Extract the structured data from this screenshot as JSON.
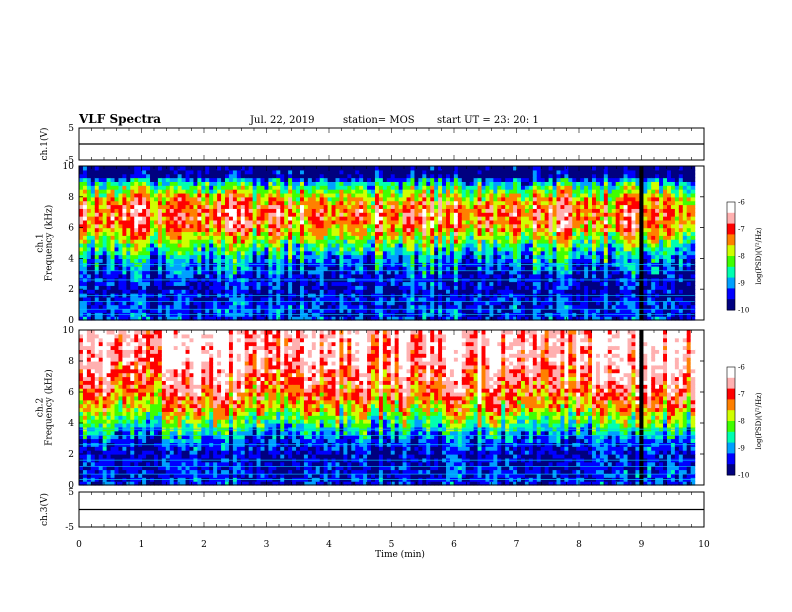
{
  "header": {
    "title": "VLF Spectra",
    "date": "Jul. 22, 2019",
    "station": "station= MOS",
    "start": "start UT = 23: 20: 1"
  },
  "colors": {
    "spectrum": [
      "#000080",
      "#0000ff",
      "#00a0ff",
      "#00ffb0",
      "#40ff00",
      "#d0ff00",
      "#ff8000",
      "#ff0000",
      "#ffb0b0",
      "#ffffff"
    ],
    "gap": "#000000",
    "axis": "#000000"
  },
  "chart_data": [
    {
      "type": "line",
      "name": "ch1-waveform",
      "ylabel": "ch.1(V)",
      "ylim": [
        -5,
        5
      ],
      "ytick_labels": [
        "5",
        "-5"
      ],
      "x": [
        0,
        10
      ],
      "y": [
        0,
        0
      ]
    },
    {
      "type": "heatmap",
      "name": "ch1-spectrogram",
      "ylabel": "ch.1\nFrequency (kHz)",
      "ylim": [
        0,
        10
      ],
      "ytick_labels": [
        "0",
        "2",
        "4",
        "6",
        "8",
        "10"
      ],
      "xlim": [
        0,
        10
      ],
      "data_end_min": 9.85,
      "gap_min": [
        8.97,
        9.03
      ],
      "profile": {
        "freq_khz": [
          0,
          1,
          2,
          3,
          4,
          5,
          6,
          7,
          8,
          9,
          9.4,
          10
        ],
        "log_psd": [
          -9.3,
          -9.4,
          -9.6,
          -9.4,
          -9.0,
          -8.2,
          -7.3,
          -7.0,
          -7.6,
          -8.8,
          -10,
          -10
        ]
      },
      "colorbar": {
        "label": "log(PSD)(V²/Hz)",
        "range": [
          -10,
          -6
        ],
        "tick_labels": [
          "-6",
          "-7",
          "-8",
          "-9",
          "-10"
        ]
      }
    },
    {
      "type": "heatmap",
      "name": "ch2-spectrogram",
      "ylabel": "ch.2\nFrequency (kHz)",
      "ylim": [
        0,
        10
      ],
      "ytick_labels": [
        "0",
        "2",
        "4",
        "6",
        "8",
        "10"
      ],
      "xlim": [
        0,
        10
      ],
      "data_end_min": 9.85,
      "gap_min": [
        8.97,
        9.03
      ],
      "profile": {
        "freq_khz": [
          0,
          1,
          2,
          3,
          4,
          5,
          6,
          7,
          8,
          9,
          10
        ],
        "log_psd": [
          -9.4,
          -9.5,
          -9.6,
          -9.2,
          -8.4,
          -7.6,
          -7.1,
          -6.8,
          -6.5,
          -6.4,
          -6.4
        ]
      },
      "colorbar": {
        "label": "log(PSD)(V²/Hz)",
        "range": [
          -10,
          -6
        ],
        "tick_labels": [
          "-6",
          "-7",
          "-8",
          "-9",
          "-10"
        ]
      }
    },
    {
      "type": "line",
      "name": "ch3-waveform",
      "ylabel": "ch.3(V)",
      "ylim": [
        -5,
        5
      ],
      "ytick_labels": [
        "5",
        "-5"
      ],
      "x": [
        0,
        10
      ],
      "y": [
        0,
        0
      ]
    }
  ],
  "xaxis": {
    "label": "Time (min)",
    "range": [
      0,
      10
    ],
    "tick_labels": [
      "0",
      "1",
      "2",
      "3",
      "4",
      "5",
      "6",
      "7",
      "8",
      "9",
      "10"
    ]
  }
}
